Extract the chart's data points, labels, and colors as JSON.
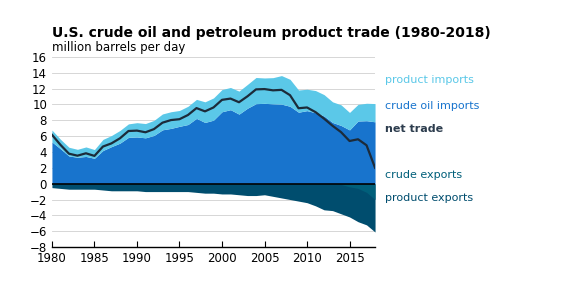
{
  "title": "U.S. crude oil and petroleum product trade (1980-2018)",
  "ylabel": "million barrels per day",
  "ylim": [
    -8,
    16
  ],
  "yticks": [
    -8,
    -6,
    -4,
    -2,
    0,
    2,
    4,
    6,
    8,
    10,
    12,
    14,
    16
  ],
  "xlim": [
    1980,
    2018
  ],
  "xticks": [
    1980,
    1985,
    1990,
    1995,
    2000,
    2005,
    2010,
    2015
  ],
  "years": [
    1980,
    1981,
    1982,
    1983,
    1984,
    1985,
    1986,
    1987,
    1988,
    1989,
    1990,
    1991,
    1992,
    1993,
    1994,
    1995,
    1996,
    1997,
    1998,
    1999,
    2000,
    2001,
    2002,
    2003,
    2004,
    2005,
    2006,
    2007,
    2008,
    2009,
    2010,
    2011,
    2012,
    2013,
    2014,
    2015,
    2016,
    2017,
    2018
  ],
  "crude_oil_imports": [
    5.26,
    4.4,
    3.49,
    3.33,
    3.43,
    3.2,
    4.18,
    4.67,
    5.11,
    5.84,
    5.89,
    5.78,
    6.08,
    6.79,
    6.97,
    7.23,
    7.46,
    8.23,
    7.72,
    8.01,
    9.07,
    9.33,
    8.77,
    9.52,
    10.09,
    10.13,
    10.07,
    10.03,
    9.76,
    9.01,
    9.21,
    8.94,
    8.53,
    7.72,
    7.34,
    6.78,
    7.9,
    7.94,
    7.8
  ],
  "product_imports": [
    1.5,
    1.2,
    1.1,
    1.0,
    1.2,
    1.1,
    1.4,
    1.4,
    1.6,
    1.7,
    1.8,
    1.8,
    1.9,
    2.0,
    2.1,
    2.0,
    2.3,
    2.4,
    2.6,
    2.8,
    2.8,
    2.8,
    2.9,
    3.0,
    3.3,
    3.2,
    3.3,
    3.6,
    3.4,
    2.8,
    2.7,
    2.8,
    2.7,
    2.6,
    2.6,
    2.2,
    2.1,
    2.2,
    2.3
  ],
  "crude_exports": [
    0.1,
    0.1,
    0.1,
    0.1,
    0.1,
    0.1,
    0.1,
    0.1,
    0.1,
    0.1,
    0.1,
    0.1,
    0.1,
    0.1,
    0.1,
    0.1,
    0.1,
    0.1,
    0.1,
    0.1,
    0.1,
    0.1,
    0.1,
    0.1,
    0.1,
    0.1,
    0.1,
    0.1,
    0.1,
    0.1,
    0.1,
    0.1,
    0.1,
    0.1,
    0.1,
    0.4,
    0.6,
    1.1,
    2.0
  ],
  "product_exports": [
    0.5,
    0.6,
    0.7,
    0.7,
    0.7,
    0.7,
    0.8,
    0.9,
    0.9,
    0.9,
    0.9,
    1.0,
    1.0,
    1.0,
    1.0,
    1.0,
    1.0,
    1.1,
    1.2,
    1.2,
    1.3,
    1.3,
    1.4,
    1.5,
    1.5,
    1.4,
    1.6,
    1.8,
    2.0,
    2.2,
    2.4,
    2.8,
    3.3,
    3.4,
    3.8,
    4.2,
    4.8,
    5.2,
    6.1
  ],
  "net_trade": [
    6.17,
    4.9,
    3.78,
    3.53,
    3.83,
    3.5,
    4.68,
    5.08,
    5.72,
    6.64,
    6.69,
    6.48,
    6.88,
    7.69,
    8.02,
    8.13,
    8.66,
    9.53,
    9.12,
    9.61,
    10.57,
    10.73,
    10.27,
    11.02,
    11.89,
    11.93,
    11.77,
    11.83,
    11.16,
    9.51,
    9.61,
    9.02,
    8.2,
    7.3,
    6.5,
    5.38,
    5.6,
    4.84,
    2.0
  ],
  "color_product_imports": "#5bc8e8",
  "color_crude_oil_imports": "#1874cd",
  "color_crude_exports": "#005f7a",
  "color_product_exports": "#004d6e",
  "color_net_trade": "#1c2b3a",
  "color_zero_line": "#000000",
  "background_color": "#ffffff",
  "label_product_imports": "product imports",
  "label_crude_oil_imports": "crude oil imports",
  "label_net_trade": "net trade",
  "label_crude_exports": "crude exports",
  "label_product_exports": "product exports",
  "title_fontsize": 10,
  "subtitle_fontsize": 8.5,
  "tick_fontsize": 8.5
}
